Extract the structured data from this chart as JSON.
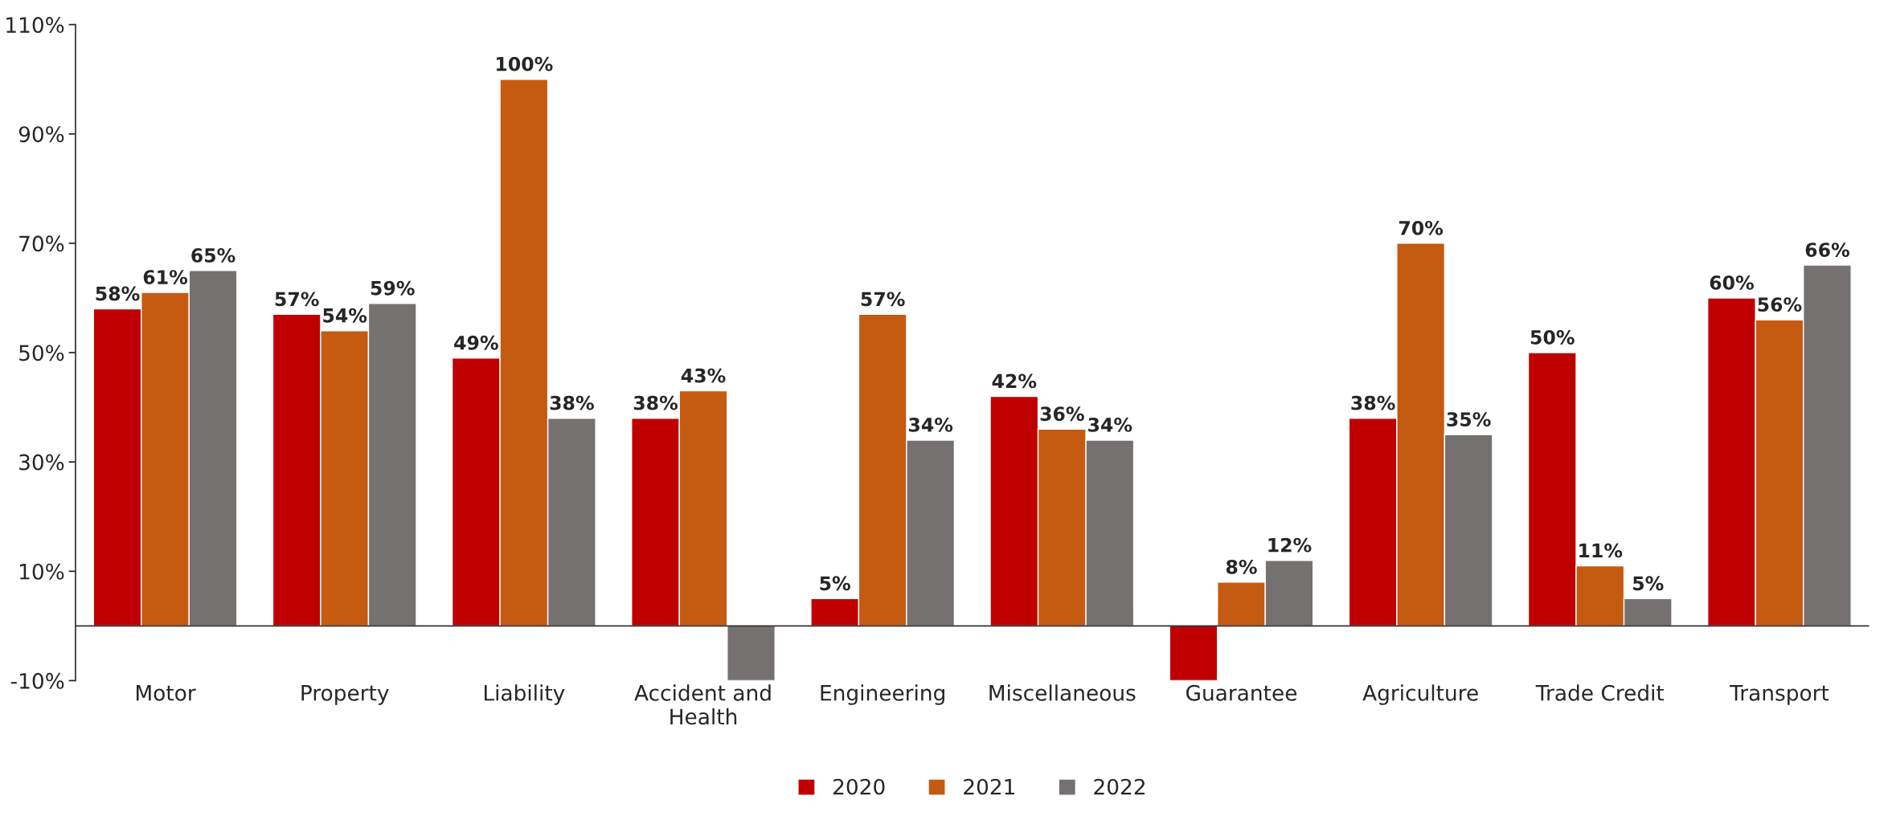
{
  "chart_data": {
    "type": "bar",
    "categories": [
      "Motor",
      "Property",
      "Liability",
      "Accident and\nHealth",
      "Engineering",
      "Miscellaneous",
      "Guarantee",
      "Agriculture",
      "Trade Credit",
      "Transport"
    ],
    "series": [
      {
        "name": "2020",
        "color": "#c00000",
        "values": [
          58,
          57,
          49,
          38,
          5,
          42,
          -10,
          38,
          50,
          60
        ],
        "value_labels": [
          "58%",
          "57%",
          "49%",
          "38%",
          "5%",
          "42%",
          null,
          "38%",
          "50%",
          "60%"
        ]
      },
      {
        "name": "2021",
        "color": "#c55a11",
        "values": [
          61,
          54,
          100,
          43,
          57,
          36,
          8,
          70,
          11,
          56
        ],
        "value_labels": [
          "61%",
          "54%",
          "100%",
          "43%",
          "57%",
          "36%",
          "8%",
          "70%",
          "11%",
          "56%"
        ]
      },
      {
        "name": "2022",
        "color": "#767171",
        "values": [
          65,
          59,
          38,
          -10,
          34,
          34,
          12,
          35,
          5,
          66
        ],
        "value_labels": [
          "65%",
          "59%",
          "38%",
          null,
          "34%",
          "34%",
          "12%",
          "35%",
          "5%",
          "66%"
        ]
      }
    ],
    "ylim": [
      -10,
      110
    ],
    "yticks": [
      {
        "value": -10,
        "label": "-10%"
      },
      {
        "value": 10,
        "label": "10%"
      },
      {
        "value": 30,
        "label": "30%"
      },
      {
        "value": 50,
        "label": "50%"
      },
      {
        "value": 70,
        "label": "70%"
      },
      {
        "value": 90,
        "label": "90%"
      },
      {
        "value": 110,
        "label": "110%"
      }
    ],
    "grid": false,
    "legend": "bottom"
  }
}
